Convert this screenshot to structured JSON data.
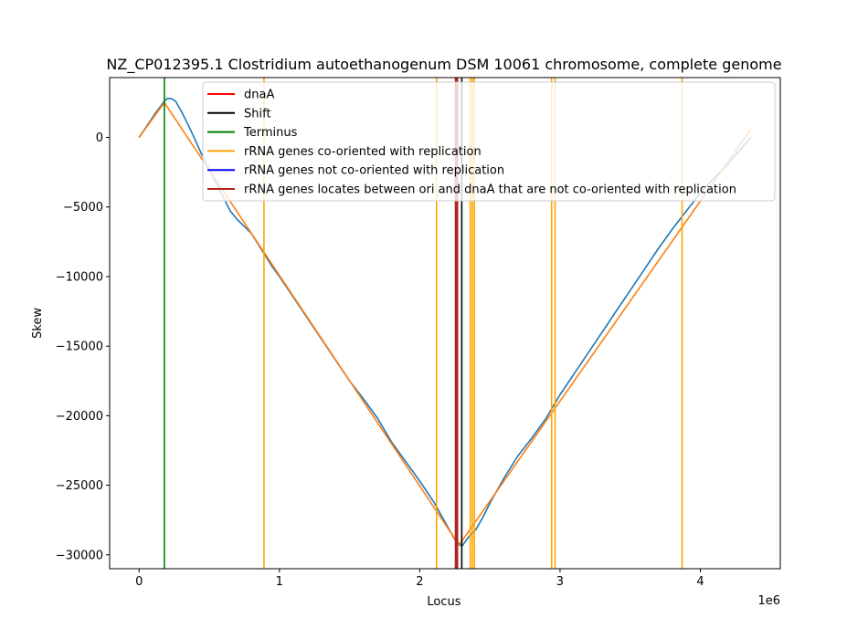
{
  "chart_data": {
    "type": "line",
    "title": "NZ_CP012395.1 Clostridium autoethanogenum DSM 10061 chromosome, complete genome",
    "xlabel": "Locus",
    "ylabel": "Skew",
    "x_offset_label": "1e6",
    "xlim": [
      -210000,
      4570000
    ],
    "ylim": [
      -31000,
      4300
    ],
    "x_ticks": [
      0,
      1000000,
      2000000,
      3000000,
      4000000
    ],
    "x_tick_labels": [
      "0",
      "1",
      "2",
      "3",
      "4"
    ],
    "y_ticks": [
      0,
      -5000,
      -10000,
      -15000,
      -20000,
      -25000,
      -30000
    ],
    "y_tick_labels": [
      "0",
      "−5000",
      "−10000",
      "−15000",
      "−20000",
      "−25000",
      "−30000"
    ],
    "legend_position": "top-right",
    "series": [
      {
        "color": "#1f77b4",
        "x": [
          0,
          60000,
          120000,
          180000,
          200000,
          230000,
          260000,
          300000,
          350000,
          400000,
          450000,
          500000,
          550000,
          600000,
          650000,
          700000,
          750000,
          800000,
          850000,
          900000,
          950000,
          1000000,
          1100000,
          1200000,
          1300000,
          1400000,
          1500000,
          1600000,
          1700000,
          1800000,
          1900000,
          2000000,
          2100000,
          2200000,
          2250000,
          2300000,
          2350000,
          2400000,
          2450000,
          2500000,
          2600000,
          2700000,
          2800000,
          2900000,
          3000000,
          3100000,
          3200000,
          3300000,
          3400000,
          3500000,
          3600000,
          3700000,
          3800000,
          3900000,
          4000000,
          4100000,
          4200000,
          4300000,
          4360000
        ],
        "y": [
          0,
          900,
          1800,
          2600,
          2800,
          2800,
          2600,
          1900,
          900,
          -200,
          -1300,
          -2300,
          -3300,
          -4300,
          -5300,
          -5900,
          -6400,
          -6900,
          -7700,
          -8500,
          -9300,
          -10000,
          -11500,
          -13000,
          -14500,
          -16000,
          -17500,
          -18800,
          -20200,
          -21900,
          -23300,
          -24700,
          -26200,
          -28000,
          -28900,
          -29400,
          -28700,
          -28200,
          -27300,
          -26300,
          -24500,
          -22900,
          -21600,
          -20200,
          -18500,
          -17000,
          -15500,
          -14000,
          -12500,
          -11000,
          -9500,
          -8000,
          -6600,
          -5300,
          -4000,
          -2900,
          -1900,
          -700,
          0
        ]
      },
      {
        "color": "#ff7f0e",
        "x": [
          0,
          180000,
          2280000,
          4360000
        ],
        "y": [
          0,
          2500,
          -29300,
          600
        ]
      }
    ],
    "vertical_lines": [
      {
        "series": "Terminus",
        "x": 180000,
        "color": "#008000"
      },
      {
        "series": "rRNA genes co-oriented with replication",
        "x": 890000,
        "color": "#ffa500"
      },
      {
        "series": "rRNA genes co-oriented with replication",
        "x": 2120000,
        "color": "#ffa500"
      },
      {
        "series": "rRNA genes co-oriented with replication",
        "x": 2360000,
        "color": "#ffa500"
      },
      {
        "series": "rRNA genes co-oriented with replication",
        "x": 2375000,
        "color": "#ffa500"
      },
      {
        "series": "rRNA genes co-oriented with replication",
        "x": 2390000,
        "color": "#ffa500"
      },
      {
        "series": "rRNA genes co-oriented with replication",
        "x": 2940000,
        "color": "#ffa500"
      },
      {
        "series": "rRNA genes co-oriented with replication",
        "x": 2965000,
        "color": "#ffa500"
      },
      {
        "series": "rRNA genes co-oriented with replication",
        "x": 3870000,
        "color": "#ffa500"
      },
      {
        "series": "rRNA genes locates between ori and dnaA that are not co-oriented with replication",
        "x": 2255000,
        "color": "#b22222"
      },
      {
        "series": "rRNA genes locates between ori and dnaA that are not co-oriented with replication",
        "x": 2262000,
        "color": "#b22222"
      },
      {
        "series": "rRNA genes locates between ori and dnaA that are not co-oriented with replication",
        "x": 2269000,
        "color": "#b22222"
      },
      {
        "series": "Shift",
        "x": 2300000,
        "color": "#000000"
      }
    ],
    "legend": [
      {
        "label": "dnaA",
        "color": "#ff0000"
      },
      {
        "label": "Shift",
        "color": "#000000"
      },
      {
        "label": "Terminus",
        "color": "#008000"
      },
      {
        "label": "rRNA genes co-oriented with replication",
        "color": "#ffa500"
      },
      {
        "label": "rRNA genes not co-oriented with replication",
        "color": "#0000ff"
      },
      {
        "label": "rRNA genes locates between ori and dnaA that are not co-oriented with replication",
        "color": "#b22222"
      }
    ]
  }
}
